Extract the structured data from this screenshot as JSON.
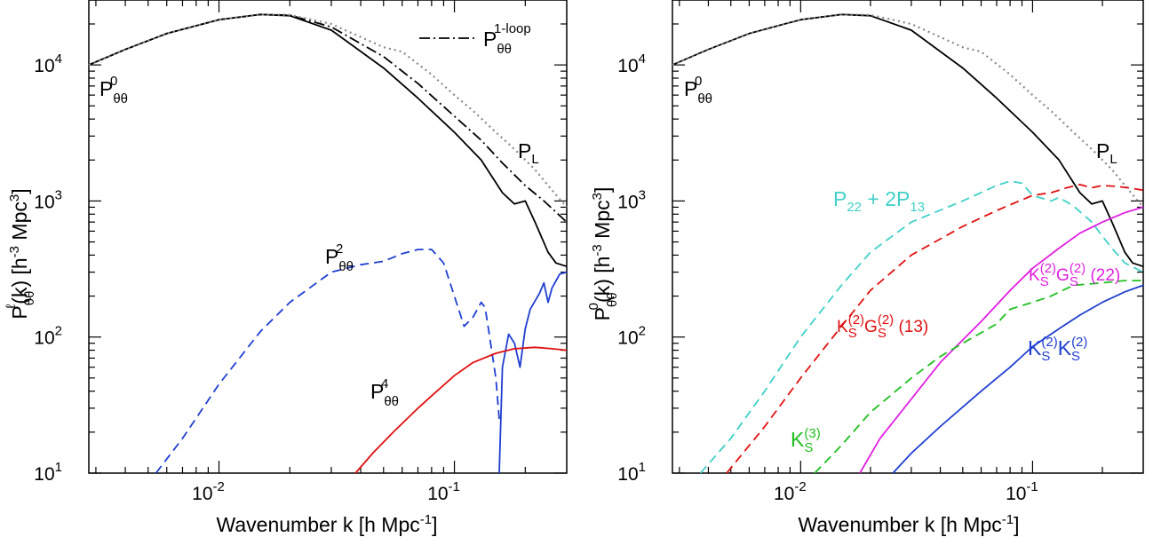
{
  "chart_data": [
    {
      "type": "line",
      "scale": {
        "x": "log",
        "y": "log"
      },
      "xlim": [
        0.0028,
        0.3
      ],
      "ylim": [
        10,
        30000
      ],
      "xlabel": "Wavenumber k [h Mpc-1]",
      "ylabel": "Pℓθθ(k) [h-3 Mpc3]",
      "x_ticks": [
        "10-2",
        "10-1"
      ],
      "y_ticks": [
        "101",
        "102",
        "103",
        "104"
      ],
      "legend": {
        "position": "top-right",
        "entries": [
          "P1-loopθθ"
        ]
      },
      "series": [
        {
          "name": "P0θθ",
          "color": "#000000",
          "dash": "solid",
          "points": [
            [
              0.0028,
              10000
            ],
            [
              0.004,
              13000
            ],
            [
              0.006,
              17000
            ],
            [
              0.01,
              21500
            ],
            [
              0.015,
              23500
            ],
            [
              0.02,
              23000
            ],
            [
              0.03,
              18000
            ],
            [
              0.05,
              9500
            ],
            [
              0.07,
              5700
            ],
            [
              0.1,
              3200
            ],
            [
              0.13,
              2000
            ],
            [
              0.16,
              1150
            ],
            [
              0.18,
              950
            ],
            [
              0.2,
              1000
            ],
            [
              0.22,
              700
            ],
            [
              0.25,
              420
            ],
            [
              0.27,
              350
            ],
            [
              0.3,
              330
            ]
          ]
        },
        {
          "name": "P1-loopθθ",
          "color": "#000000",
          "dash": "dashdot",
          "points": [
            [
              0.0028,
              10000
            ],
            [
              0.004,
              13000
            ],
            [
              0.006,
              17000
            ],
            [
              0.01,
              21500
            ],
            [
              0.015,
              23500
            ],
            [
              0.02,
              23200
            ],
            [
              0.03,
              19000
            ],
            [
              0.05,
              11500
            ],
            [
              0.07,
              7300
            ],
            [
              0.1,
              4200
            ],
            [
              0.13,
              2800
            ],
            [
              0.16,
              1900
            ],
            [
              0.2,
              1300
            ],
            [
              0.24,
              1000
            ],
            [
              0.3,
              700
            ]
          ]
        },
        {
          "name": "PL",
          "color": "#888888",
          "dash": "dotted",
          "points": [
            [
              0.0028,
              10000
            ],
            [
              0.004,
              13000
            ],
            [
              0.006,
              17000
            ],
            [
              0.01,
              21500
            ],
            [
              0.015,
              23500
            ],
            [
              0.02,
              23300
            ],
            [
              0.03,
              20000
            ],
            [
              0.05,
              13500
            ],
            [
              0.06,
              12500
            ],
            [
              0.08,
              8500
            ],
            [
              0.1,
              6000
            ],
            [
              0.12,
              4600
            ],
            [
              0.15,
              3200
            ],
            [
              0.18,
              2400
            ],
            [
              0.22,
              1700
            ],
            [
              0.26,
              1200
            ],
            [
              0.3,
              900
            ]
          ]
        },
        {
          "name": "P2θθ",
          "color": "#1f3fd1",
          "dash": "dashed",
          "points": [
            [
              0.0054,
              10
            ],
            [
              0.007,
              18
            ],
            [
              0.01,
              45
            ],
            [
              0.015,
              110
            ],
            [
              0.02,
              180
            ],
            [
              0.03,
              300
            ],
            [
              0.04,
              340
            ],
            [
              0.05,
              360
            ],
            [
              0.06,
              410
            ],
            [
              0.07,
              440
            ],
            [
              0.08,
              440
            ],
            [
              0.09,
              350
            ],
            [
              0.1,
              200
            ],
            [
              0.11,
              120
            ],
            [
              0.12,
              140
            ],
            [
              0.13,
              180
            ],
            [
              0.135,
              165
            ],
            [
              0.14,
              110
            ],
            [
              0.15,
              50
            ],
            [
              0.155,
              25
            ]
          ]
        },
        {
          "name": "P2θθ-tail",
          "color": "#1f3fd1",
          "dash": "solid",
          "points": [
            [
              0.155,
              10
            ],
            [
              0.16,
              60
            ],
            [
              0.17,
              105
            ],
            [
              0.18,
              90
            ],
            [
              0.19,
              60
            ],
            [
              0.2,
              115
            ],
            [
              0.21,
              160
            ],
            [
              0.23,
              210
            ],
            [
              0.24,
              250
            ],
            [
              0.25,
              180
            ],
            [
              0.26,
              230
            ],
            [
              0.28,
              290
            ],
            [
              0.3,
              300
            ]
          ]
        },
        {
          "name": "P4θθ",
          "color": "#e01010",
          "dash": "solid",
          "points": [
            [
              0.038,
              10
            ],
            [
              0.045,
              14
            ],
            [
              0.055,
              20
            ],
            [
              0.07,
              30
            ],
            [
              0.08,
              37
            ],
            [
              0.1,
              52
            ],
            [
              0.12,
              65
            ],
            [
              0.15,
              76
            ],
            [
              0.18,
              82
            ],
            [
              0.22,
              84
            ],
            [
              0.26,
              82
            ],
            [
              0.3,
              80
            ]
          ]
        }
      ],
      "annotations": [
        {
          "text": "P0θθ",
          "x": 0.0035,
          "y": 8200
        },
        {
          "text": "PL",
          "x": 0.18,
          "y": 5000
        },
        {
          "text": "P2θθ",
          "x": 0.038,
          "y": 420
        },
        {
          "text": "P4θθ",
          "x": 0.05,
          "y": 26
        }
      ]
    },
    {
      "type": "line",
      "scale": {
        "x": "log",
        "y": "log"
      },
      "xlim": [
        0.0028,
        0.3
      ],
      "ylim": [
        10,
        30000
      ],
      "xlabel": "Wavenumber k [h Mpc-1]",
      "ylabel": "P0θθ(k) [h-3 Mpc3]",
      "x_ticks": [
        "10-2",
        "10-1"
      ],
      "y_ticks": [
        "101",
        "102",
        "103",
        "104"
      ],
      "series": [
        {
          "name": "P0θθ",
          "color": "#000000",
          "dash": "solid",
          "points": [
            [
              0.0028,
              10000
            ],
            [
              0.004,
              13000
            ],
            [
              0.006,
              17000
            ],
            [
              0.01,
              21500
            ],
            [
              0.015,
              23500
            ],
            [
              0.02,
              23000
            ],
            [
              0.03,
              18000
            ],
            [
              0.05,
              9500
            ],
            [
              0.07,
              5700
            ],
            [
              0.1,
              3200
            ],
            [
              0.13,
              2000
            ],
            [
              0.16,
              1150
            ],
            [
              0.18,
              950
            ],
            [
              0.2,
              1000
            ],
            [
              0.22,
              700
            ],
            [
              0.25,
              420
            ],
            [
              0.27,
              350
            ],
            [
              0.3,
              330
            ]
          ]
        },
        {
          "name": "PL",
          "color": "#888888",
          "dash": "dotted",
          "points": [
            [
              0.0028,
              10000
            ],
            [
              0.004,
              13000
            ],
            [
              0.006,
              17000
            ],
            [
              0.01,
              21500
            ],
            [
              0.015,
              23500
            ],
            [
              0.02,
              23300
            ],
            [
              0.03,
              20000
            ],
            [
              0.05,
              13500
            ],
            [
              0.06,
              12500
            ],
            [
              0.08,
              8500
            ],
            [
              0.1,
              6000
            ],
            [
              0.12,
              4600
            ],
            [
              0.15,
              3200
            ],
            [
              0.18,
              2400
            ],
            [
              0.22,
              1700
            ],
            [
              0.26,
              1200
            ],
            [
              0.3,
              900
            ]
          ]
        },
        {
          "name": "P22 + 2P13",
          "color": "#40d0c8",
          "dash": "dashed",
          "points": [
            [
              0.0037,
              10
            ],
            [
              0.005,
              18
            ],
            [
              0.007,
              40
            ],
            [
              0.01,
              100
            ],
            [
              0.015,
              240
            ],
            [
              0.02,
              420
            ],
            [
              0.03,
              700
            ],
            [
              0.05,
              1000
            ],
            [
              0.07,
              1300
            ],
            [
              0.08,
              1400
            ],
            [
              0.09,
              1350
            ],
            [
              0.1,
              1100
            ],
            [
              0.12,
              1000
            ],
            [
              0.13,
              1060
            ],
            [
              0.15,
              920
            ],
            [
              0.18,
              700
            ],
            [
              0.2,
              550
            ],
            [
              0.22,
              450
            ],
            [
              0.25,
              350
            ],
            [
              0.3,
              300
            ]
          ]
        },
        {
          "name": "K(2)S G(2)S (13)",
          "color": "#e01010",
          "dash": "dashed",
          "points": [
            [
              0.0048,
              10
            ],
            [
              0.007,
              22
            ],
            [
              0.01,
              50
            ],
            [
              0.015,
              120
            ],
            [
              0.02,
              220
            ],
            [
              0.03,
              400
            ],
            [
              0.05,
              650
            ],
            [
              0.07,
              850
            ],
            [
              0.1,
              1100
            ],
            [
              0.12,
              1150
            ],
            [
              0.14,
              1250
            ],
            [
              0.16,
              1320
            ],
            [
              0.18,
              1250
            ],
            [
              0.2,
              1300
            ],
            [
              0.23,
              1280
            ],
            [
              0.26,
              1250
            ],
            [
              0.3,
              1200
            ]
          ]
        },
        {
          "name": "K(2)S G(2)S (22)",
          "color": "#e020e0",
          "dash": "solid",
          "points": [
            [
              0.018,
              10
            ],
            [
              0.022,
              18
            ],
            [
              0.03,
              35
            ],
            [
              0.04,
              65
            ],
            [
              0.06,
              130
            ],
            [
              0.08,
              220
            ],
            [
              0.1,
              320
            ],
            [
              0.13,
              450
            ],
            [
              0.16,
              580
            ],
            [
              0.2,
              700
            ],
            [
              0.25,
              820
            ],
            [
              0.3,
              900
            ]
          ]
        },
        {
          "name": "K(3)S",
          "color": "#20c020",
          "dash": "dashed",
          "points": [
            [
              0.0115,
              10
            ],
            [
              0.015,
              16
            ],
            [
              0.02,
              28
            ],
            [
              0.03,
              50
            ],
            [
              0.04,
              72
            ],
            [
              0.05,
              90
            ],
            [
              0.07,
              125
            ],
            [
              0.08,
              160
            ],
            [
              0.1,
              180
            ],
            [
              0.12,
              200
            ],
            [
              0.15,
              240
            ],
            [
              0.2,
              250
            ],
            [
              0.25,
              260
            ],
            [
              0.3,
              260
            ]
          ]
        },
        {
          "name": "K(2)S K(2)S",
          "color": "#1f3fd1",
          "dash": "solid",
          "points": [
            [
              0.025,
              10
            ],
            [
              0.03,
              14
            ],
            [
              0.04,
              22
            ],
            [
              0.06,
              40
            ],
            [
              0.08,
              60
            ],
            [
              0.1,
              85
            ],
            [
              0.13,
              115
            ],
            [
              0.16,
              145
            ],
            [
              0.2,
              180
            ],
            [
              0.25,
              215
            ],
            [
              0.3,
              240
            ]
          ]
        }
      ],
      "annotations": [
        {
          "text": "P0θθ",
          "x": 0.0035,
          "y": 8200
        },
        {
          "text": "PL",
          "x": 0.18,
          "y": 5000
        },
        {
          "text": "P22 + 2P13",
          "x": 0.012,
          "y": 1200
        },
        {
          "text": "K(2)S G(2)S (22)",
          "x": 0.12,
          "y": 300
        },
        {
          "text": "K(2)S G(2)S (13)",
          "x": 0.033,
          "y": 120
        },
        {
          "text": "K(2)S K(2)S",
          "x": 0.13,
          "y": 75
        },
        {
          "text": "K(3)S",
          "x": 0.01,
          "y": 16
        }
      ]
    }
  ]
}
